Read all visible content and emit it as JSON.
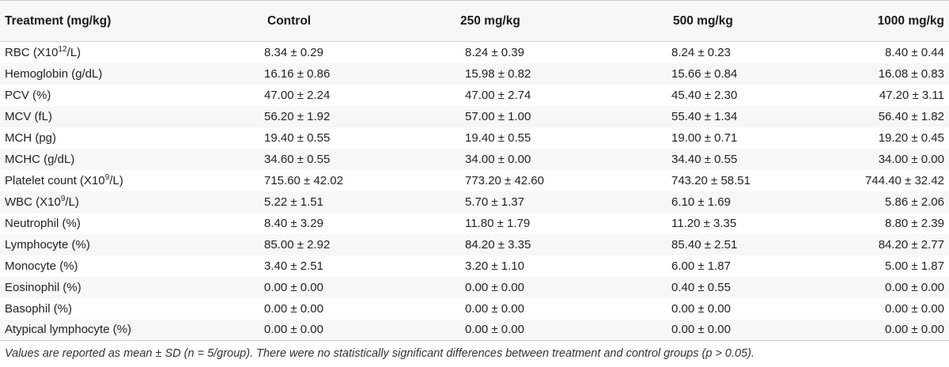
{
  "table": {
    "headers": [
      "Treatment (mg/kg)",
      "Control",
      "250 mg/kg",
      "500 mg/kg",
      "1000 mg/kg"
    ],
    "rows": [
      {
        "label": "RBC (X10",
        "sup": "12",
        "label_tail": "/L)",
        "values": [
          "8.34 ± 0.29",
          "8.24 ± 0.39",
          "8.24 ± 0.23",
          "8.40 ± 0.44"
        ]
      },
      {
        "label": "Hemoglobin (g/dL)",
        "values": [
          "16.16 ± 0.86",
          "15.98 ± 0.82",
          "15.66 ± 0.84",
          "16.08 ± 0.83"
        ]
      },
      {
        "label": "PCV (%)",
        "values": [
          "47.00 ± 2.24",
          "47.00 ± 2.74",
          "45.40 ± 2.30",
          "47.20 ± 3.11"
        ]
      },
      {
        "label": "MCV (fL)",
        "values": [
          "56.20 ± 1.92",
          "57.00 ± 1.00",
          "55.40 ± 1.34",
          "56.40 ± 1.82"
        ]
      },
      {
        "label": "MCH (pg)",
        "values": [
          "19.40 ± 0.55",
          "19.40 ± 0.55",
          "19.00 ± 0.71",
          "19.20 ± 0.45"
        ]
      },
      {
        "label": "MCHC (g/dL)",
        "values": [
          "34.60 ± 0.55",
          "34.00 ± 0.00",
          "34.40 ± 0.55",
          "34.00 ± 0.00"
        ]
      },
      {
        "label": "Platelet count (X10",
        "sup": "9",
        "label_tail": "/L)",
        "values": [
          "715.60 ± 42.02",
          "773.20 ± 42.60",
          "743.20 ± 58.51",
          "744.40 ± 32.42"
        ]
      },
      {
        "label": "WBC (X10",
        "sup": "9",
        "label_tail": "/L)",
        "values": [
          "5.22 ± 1.51",
          "5.70 ± 1.37",
          "6.10 ± 1.69",
          "5.86 ± 2.06"
        ]
      },
      {
        "label": "Neutrophil (%)",
        "values": [
          "8.40 ± 3.29",
          "11.80 ± 1.79",
          "11.20 ± 3.35",
          "8.80 ± 2.39"
        ]
      },
      {
        "label": "Lymphocyte (%)",
        "values": [
          "85.00 ± 2.92",
          "84.20 ± 3.35",
          "85.40 ± 2.51",
          "84.20 ± 2.77"
        ]
      },
      {
        "label": "Monocyte (%)",
        "values": [
          "3.40 ± 2.51",
          "3.20 ± 1.10",
          "6.00 ± 1.87",
          "5.00 ± 1.87"
        ]
      },
      {
        "label": "Eosinophil (%)",
        "values": [
          "0.00 ± 0.00",
          "0.00 ± 0.00",
          "0.40 ± 0.55",
          "0.00 ± 0.00"
        ]
      },
      {
        "label": "Basophil (%)",
        "values": [
          "0.00 ± 0.00",
          "0.00 ± 0.00",
          "0.00 ± 0.00",
          "0.00 ± 0.00"
        ]
      },
      {
        "label": "Atypical lymphocyte (%)",
        "values": [
          "0.00 ± 0.00",
          "0.00 ± 0.00",
          "0.00 ± 0.00",
          "0.00 ± 0.00"
        ]
      }
    ]
  },
  "footnote": "Values are reported as mean ± SD (n = 5/group). There were no statistically significant differences between treatment and control groups (p > 0.05).",
  "colors": {
    "stripe": "#f7f7f7",
    "rule": "#cfcfcf",
    "text": "#222222"
  }
}
